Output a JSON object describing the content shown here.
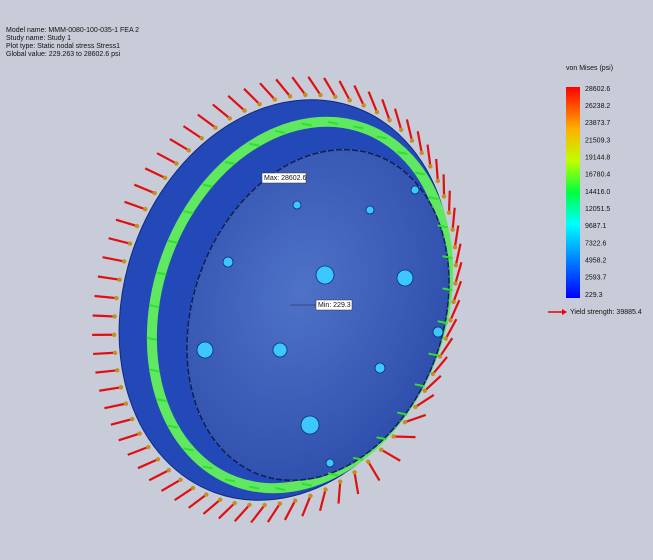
{
  "header": {
    "lines": [
      "Model name: MMM-0080-100-035-1 FEA 2",
      "Study name: Study 1",
      "Plot type: Static nodal stress Stress1",
      "Global value: 229.263 to 28602.6 psi"
    ]
  },
  "legend": {
    "title": "von Mises (psi)",
    "labels": [
      "28602.6",
      "26238.2",
      "23873.7",
      "21509.3",
      "19144.8",
      "16780.4",
      "14416.0",
      "12051.5",
      "9687.1",
      "7322.6",
      "4958.2",
      "2593.7",
      "229.3"
    ],
    "yield": "Yield strength: 39885.4"
  },
  "annotations": {
    "max": "Max: 28602.6",
    "min": "Min: 229.3"
  }
}
